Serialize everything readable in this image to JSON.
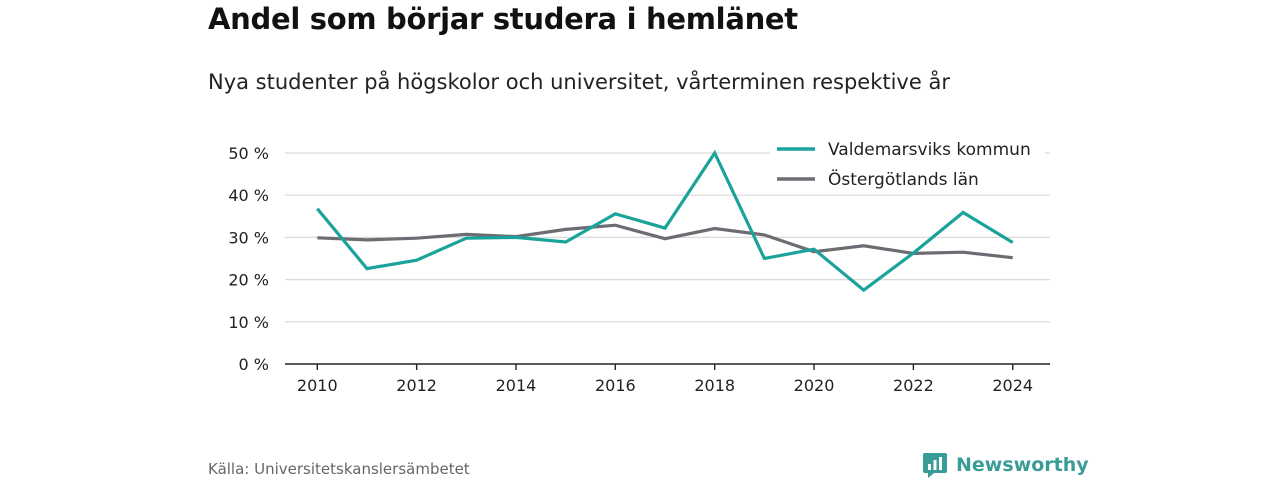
{
  "header": {
    "title": "Andel som börjar studera i hemlänet",
    "subtitle": "Nya studenter på högskolor och universitet, vårterminen respektive år"
  },
  "footer": {
    "source": "Källa: Universitetskanslersämbetet",
    "brand": "Newsworthy",
    "brand_icon": "bar-chart-badge-icon",
    "brand_color": "#3a9c96"
  },
  "chart_data": {
    "type": "line",
    "title": "Andel som börjar studera i hemlänet",
    "subtitle": "Nya studenter på högskolor och universitet, vårterminen respektive år",
    "xlabel": "",
    "ylabel": "",
    "x": [
      2010,
      2011,
      2012,
      2013,
      2014,
      2015,
      2016,
      2017,
      2018,
      2019,
      2020,
      2021,
      2022,
      2023,
      2024
    ],
    "x_ticks": [
      "2010",
      "2012",
      "2014",
      "2016",
      "2018",
      "2020",
      "2022",
      "2024"
    ],
    "y_ticks": [
      "0 %",
      "10 %",
      "20 %",
      "30 %",
      "40 %",
      "50 %"
    ],
    "y_tick_values": [
      0,
      10,
      20,
      30,
      40,
      50
    ],
    "ylim": [
      0,
      50
    ],
    "grid": true,
    "legend_position": "top-right",
    "series": [
      {
        "name": "Valdemarsviks kommun",
        "color": "#1aa39a",
        "values": [
          36.8,
          22.6,
          24.6,
          29.8,
          30.0,
          28.9,
          35.6,
          32.2,
          50.0,
          25.0,
          27.2,
          17.5,
          26.3,
          35.9,
          28.8
        ]
      },
      {
        "name": "Östergötlands län",
        "color": "#6e6c73",
        "values": [
          29.9,
          29.4,
          29.8,
          30.7,
          30.2,
          31.9,
          32.9,
          29.7,
          32.1,
          30.6,
          26.6,
          28.0,
          26.2,
          26.5,
          25.2
        ]
      }
    ]
  }
}
